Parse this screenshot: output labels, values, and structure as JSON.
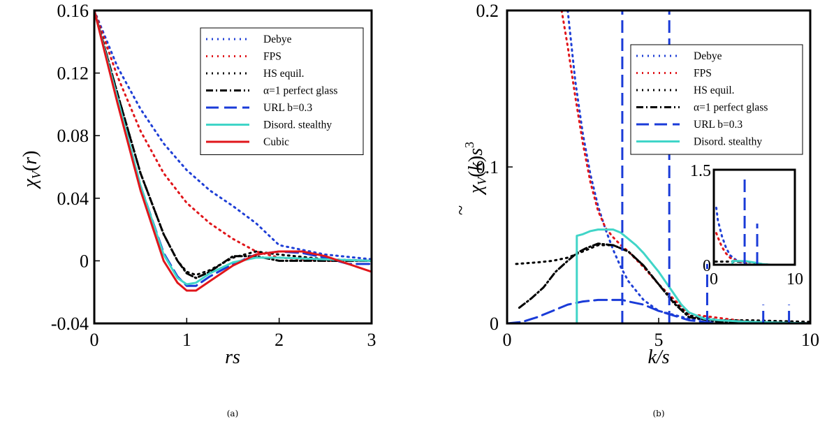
{
  "captions": {
    "a": "(a)",
    "b": "(b)"
  },
  "styles": {
    "Debye": {
      "color": "#1f3fd6",
      "dash": "2 6",
      "width": 3
    },
    "FPS": {
      "color": "#e0161b",
      "dash": "2 6",
      "width": 3
    },
    "HS equil.": {
      "color": "#000000",
      "dash": "2 6",
      "width": 3
    },
    "α=1 perfect glass": {
      "color": "#000000",
      "dash": "10 4 2 4",
      "width": 3
    },
    "URL b=0.3": {
      "color": "#1a3bd8",
      "dash": "18 8",
      "width": 3
    },
    "Disord. stealthy": {
      "color": "#40d5c8",
      "dash": "",
      "width": 3
    },
    "Cubic": {
      "color": "#e0161b",
      "dash": "",
      "width": 3
    }
  },
  "chart_data": [
    {
      "type": "line",
      "panel": "a",
      "xlabel": "rs",
      "ylabel": "χ_V(r)",
      "xlim": [
        0,
        3
      ],
      "ylim": [
        -0.04,
        0.16
      ],
      "xticks": [
        "0",
        "1",
        "2",
        "3"
      ],
      "yticks": [
        "-0.04",
        "0",
        "0.04",
        "0.08",
        "0.12",
        "0.16"
      ],
      "legend_position": "top-right",
      "legend": [
        "Debye",
        "FPS",
        "HS equil.",
        "α=1 perfect glass",
        "URL b=0.3",
        "Disord. stealthy",
        "Cubic"
      ],
      "series": [
        {
          "name": "Debye",
          "x": [
            0,
            0.25,
            0.5,
            0.75,
            1.0,
            1.25,
            1.5,
            1.75,
            2.0,
            2.5,
            3.0
          ],
          "y": [
            0.16,
            0.124,
            0.097,
            0.075,
            0.058,
            0.045,
            0.035,
            0.024,
            0.01,
            0.004,
            0.001
          ]
        },
        {
          "name": "FPS",
          "x": [
            0,
            0.25,
            0.5,
            0.75,
            1.0,
            1.25,
            1.5,
            1.75,
            2.0,
            2.5,
            3.0
          ],
          "y": [
            0.16,
            0.118,
            0.083,
            0.056,
            0.037,
            0.024,
            0.014,
            0.006,
            0.002,
            0.0,
            0.0
          ]
        },
        {
          "name": "HS equil.",
          "x": [
            0,
            0.25,
            0.5,
            0.75,
            0.9,
            1.0,
            1.1,
            1.25,
            1.5,
            1.75,
            2.0,
            2.5,
            3.0
          ],
          "y": [
            0.16,
            0.107,
            0.056,
            0.017,
            0.0,
            -0.007,
            -0.009,
            -0.006,
            0.002,
            0.006,
            0.004,
            0.001,
            0.0
          ]
        },
        {
          "name": "α=1 perfect glass",
          "x": [
            0,
            0.25,
            0.5,
            0.75,
            0.9,
            1.0,
            1.1,
            1.25,
            1.5,
            1.75,
            2.0,
            2.5,
            3.0
          ],
          "y": [
            0.16,
            0.107,
            0.056,
            0.017,
            0.0,
            -0.008,
            -0.011,
            -0.007,
            0.003,
            0.003,
            0.0,
            0.0,
            0.0
          ]
        },
        {
          "name": "URL b=0.3",
          "x": [
            0,
            0.25,
            0.5,
            0.75,
            0.9,
            1.0,
            1.1,
            1.25,
            1.5,
            1.75,
            2.0,
            2.25,
            2.5,
            2.75,
            3.0
          ],
          "y": [
            0.16,
            0.104,
            0.048,
            0.005,
            -0.01,
            -0.016,
            -0.016,
            -0.01,
            -0.002,
            0.004,
            0.006,
            0.005,
            0.002,
            -0.002,
            -0.002
          ]
        },
        {
          "name": "Disord. stealthy",
          "x": [
            0,
            0.25,
            0.5,
            0.75,
            0.9,
            1.0,
            1.1,
            1.25,
            1.5,
            1.75,
            2.0,
            2.5,
            3.0
          ],
          "y": [
            0.16,
            0.104,
            0.048,
            0.004,
            -0.011,
            -0.015,
            -0.014,
            -0.008,
            -0.001,
            0.002,
            0.002,
            0.001,
            0.0
          ]
        },
        {
          "name": "Cubic",
          "x": [
            0,
            0.25,
            0.5,
            0.75,
            0.9,
            1.0,
            1.1,
            1.25,
            1.5,
            1.75,
            2.0,
            2.25,
            2.5,
            2.75,
            3.0
          ],
          "y": [
            0.16,
            0.101,
            0.045,
            0.0,
            -0.014,
            -0.019,
            -0.019,
            -0.013,
            -0.003,
            0.004,
            0.006,
            0.006,
            0.003,
            -0.002,
            -0.007
          ]
        }
      ]
    },
    {
      "type": "line",
      "panel": "b",
      "xlabel": "k/s",
      "ylabel": "~χ_V(k)s^3",
      "xlim": [
        0,
        10
      ],
      "ylim": [
        0,
        0.2
      ],
      "xticks": [
        "0",
        "5",
        "10"
      ],
      "yticks": [
        "0",
        "0.1",
        "0.2"
      ],
      "legend_position": "top-right",
      "legend": [
        "Debye",
        "FPS",
        "HS equil.",
        "α=1 perfect glass",
        "URL b=0.3",
        "Disord. stealthy"
      ],
      "series": [
        {
          "name": "Debye",
          "x": [
            2.0,
            2.25,
            2.5,
            2.75,
            3.0,
            3.25,
            3.5,
            3.75,
            4.0,
            4.5,
            5.0,
            6.0,
            8.0,
            10.0
          ],
          "y": [
            0.2,
            0.155,
            0.121,
            0.095,
            0.075,
            0.06,
            0.047,
            0.036,
            0.027,
            0.015,
            0.008,
            0.003,
            0.001,
            0.0
          ]
        },
        {
          "name": "FPS",
          "x": [
            1.8,
            2.0,
            2.25,
            2.5,
            2.75,
            3.0,
            3.25,
            3.5,
            3.75,
            4.0,
            4.5,
            5.0,
            6.0,
            8.0,
            10.0
          ],
          "y": [
            0.2,
            0.177,
            0.145,
            0.115,
            0.09,
            0.072,
            0.061,
            0.055,
            0.05,
            0.046,
            0.036,
            0.025,
            0.006,
            0.001,
            0.0
          ]
        },
        {
          "name": "HS equil.",
          "x": [
            0.3,
            1.0,
            1.5,
            2.0,
            2.5,
            3.0,
            3.5,
            4.0,
            4.5,
            5.0,
            5.5,
            6.0,
            7.0,
            8.0,
            10.0
          ],
          "y": [
            0.038,
            0.039,
            0.04,
            0.042,
            0.046,
            0.05,
            0.05,
            0.046,
            0.037,
            0.025,
            0.014,
            0.005,
            0.002,
            0.002,
            0.001
          ]
        },
        {
          "name": "α=1 perfect glass",
          "x": [
            0.4,
            0.8,
            1.2,
            1.6,
            2.0,
            2.3,
            2.6,
            3.0,
            3.5,
            4.0,
            4.5,
            5.0,
            5.5,
            6.0,
            7.0,
            8.0,
            10.0
          ],
          "y": [
            0.01,
            0.016,
            0.023,
            0.033,
            0.04,
            0.045,
            0.048,
            0.051,
            0.05,
            0.046,
            0.037,
            0.025,
            0.013,
            0.004,
            0.001,
            0.001,
            0.0
          ]
        },
        {
          "name": "URL b=0.3",
          "x": [
            0,
            0.5,
            1.0,
            1.5,
            2.0,
            2.5,
            3.0,
            3.5,
            3.8,
            4.0,
            4.5,
            5.0,
            5.5,
            6.0,
            7.0,
            8.0,
            10.0
          ],
          "y": [
            0.0,
            0.001,
            0.004,
            0.008,
            0.012,
            0.014,
            0.015,
            0.015,
            0.015,
            0.014,
            0.012,
            0.008,
            0.005,
            0.002,
            0.0,
            0.0,
            0.0
          ]
        },
        {
          "name": "Disord. stealthy",
          "x": [
            2.3,
            2.3,
            2.5,
            2.75,
            3.0,
            3.25,
            3.5,
            3.75,
            4.0,
            4.25,
            4.5,
            4.75,
            5.0,
            5.25,
            5.5,
            5.75,
            6.0,
            6.5,
            7.0,
            8.0,
            10.0
          ],
          "y": [
            0.0,
            0.056,
            0.057,
            0.059,
            0.06,
            0.06,
            0.06,
            0.058,
            0.054,
            0.05,
            0.045,
            0.039,
            0.033,
            0.026,
            0.019,
            0.012,
            0.007,
            0.003,
            0.002,
            0.001,
            0.0
          ]
        }
      ],
      "spikes": {
        "series": "URL b=0.3",
        "peaks": [
          {
            "x": 3.8,
            "y": 0.2
          },
          {
            "x": 5.35,
            "y": 0.2
          },
          {
            "x": 6.6,
            "y": 0.038
          },
          {
            "x": 8.45,
            "y": 0.012
          },
          {
            "x": 9.3,
            "y": 0.012
          }
        ]
      },
      "inset": {
        "xlim": [
          0,
          10
        ],
        "ylim": [
          0,
          1.5
        ],
        "xticks": [
          "0",
          "10"
        ],
        "yticks": [
          "0",
          "1.5"
        ],
        "series": [
          {
            "name": "Debye",
            "x": [
              0.3,
              0.5,
              1.0,
              1.5,
              2.0,
              3.0,
              4.0
            ],
            "y": [
              0.9,
              0.7,
              0.45,
              0.27,
              0.15,
              0.05,
              0.02
            ]
          },
          {
            "name": "FPS",
            "x": [
              0.3,
              0.6,
              1.0,
              1.5,
              2.0,
              3.0,
              4.0
            ],
            "y": [
              0.5,
              0.4,
              0.28,
              0.18,
              0.11,
              0.05,
              0.04
            ]
          },
          {
            "name": "HS equil.",
            "x": [
              0.2,
              1.0,
              2.0,
              3.0,
              4.0,
              5.0,
              6.0,
              7.0
            ],
            "y": [
              0.05,
              0.05,
              0.05,
              0.05,
              0.05,
              0.03,
              0.01,
              0.0
            ]
          },
          {
            "name": "Disord. stealthy",
            "x": [
              2.3,
              2.3,
              3.0,
              4.0,
              5.0,
              6.0,
              7.0
            ],
            "y": [
              0.0,
              0.06,
              0.06,
              0.055,
              0.035,
              0.01,
              0.0
            ]
          }
        ],
        "spikes": {
          "series": "URL b=0.3",
          "peaks": [
            {
              "x": 3.8,
              "y": 1.4
            },
            {
              "x": 5.35,
              "y": 0.65
            }
          ]
        }
      }
    }
  ]
}
